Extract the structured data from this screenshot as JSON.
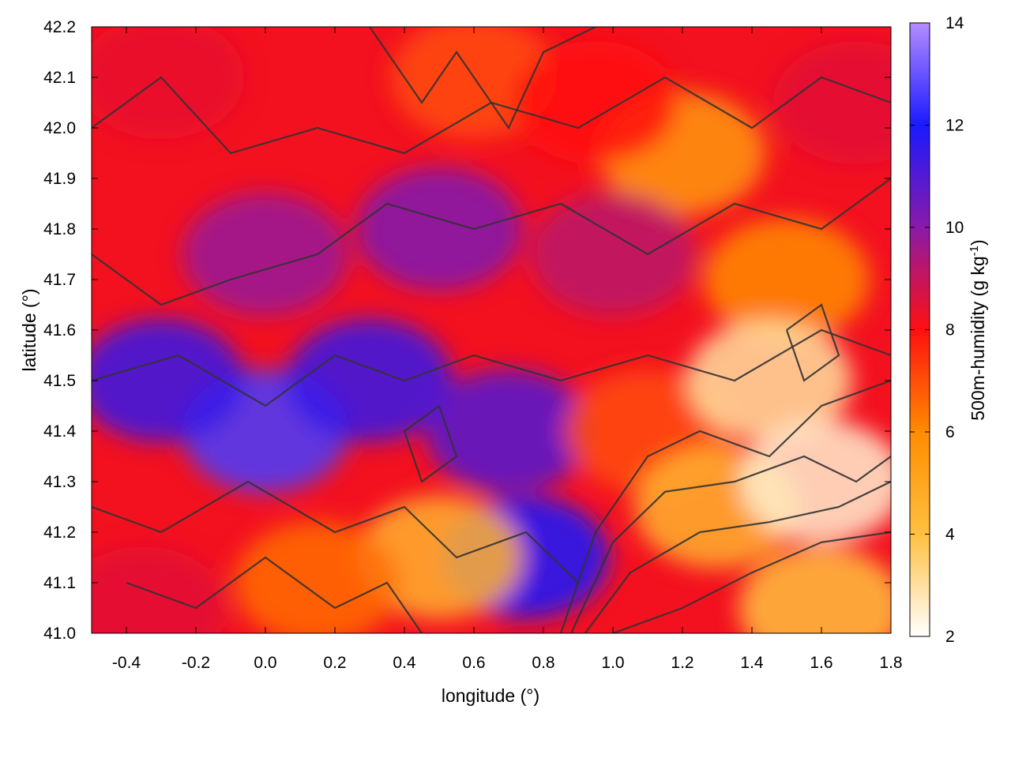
{
  "chart_data": {
    "type": "heatmap",
    "title": "",
    "xlabel": "longitude (°)",
    "ylabel": "latitude (°)",
    "colorbar_label": "500m-humidity (g kg-1)",
    "colorbar_label_parts": {
      "base": "500m-humidity (g kg",
      "sup": "-1",
      "end": ")"
    },
    "xlim": [
      -0.5,
      1.8
    ],
    "ylim": [
      41.0,
      42.2
    ],
    "clim": [
      2,
      14
    ],
    "x_ticks": [
      "-0.4",
      "-0.2",
      "0.0",
      "0.2",
      "0.4",
      "0.6",
      "0.8",
      "1.0",
      "1.2",
      "1.4",
      "1.6",
      "1.8"
    ],
    "x_tick_values": [
      -0.4,
      -0.2,
      0.0,
      0.2,
      0.4,
      0.6,
      0.8,
      1.0,
      1.2,
      1.4,
      1.6,
      1.8
    ],
    "y_ticks": [
      "41.0",
      "41.1",
      "41.2",
      "41.3",
      "41.4",
      "41.5",
      "41.6",
      "41.7",
      "41.8",
      "41.9",
      "42.0",
      "42.1",
      "42.2"
    ],
    "y_tick_values": [
      41.0,
      41.1,
      41.2,
      41.3,
      41.4,
      41.5,
      41.6,
      41.7,
      41.8,
      41.9,
      42.0,
      42.1,
      42.2
    ],
    "colorbar_ticks": [
      "2",
      "4",
      "6",
      "8",
      "10",
      "12",
      "14"
    ],
    "colorbar_tick_values": [
      2,
      4,
      6,
      8,
      10,
      12,
      14
    ],
    "colormap": [
      {
        "value": 2,
        "color": "#ffffff"
      },
      {
        "value": 4,
        "color": "#ffc040"
      },
      {
        "value": 6,
        "color": "#ff8c00"
      },
      {
        "value": 8,
        "color": "#ff1010"
      },
      {
        "value": 10,
        "color": "#8a1aa8"
      },
      {
        "value": 12,
        "color": "#1a1aff"
      },
      {
        "value": 14,
        "color": "#b58cff"
      }
    ],
    "contour_color": "#333333",
    "regions": [
      {
        "x": 0.0,
        "y": 41.4,
        "value": 12.6
      },
      {
        "x": -0.3,
        "y": 41.5,
        "value": 11.5
      },
      {
        "x": 0.3,
        "y": 41.5,
        "value": 11.5
      },
      {
        "x": 0.5,
        "y": 41.8,
        "value": 10.2
      },
      {
        "x": 0.7,
        "y": 41.4,
        "value": 11.0
      },
      {
        "x": 0.75,
        "y": 41.15,
        "value": 12.0
      },
      {
        "x": -0.3,
        "y": 42.1,
        "value": 8.4
      },
      {
        "x": 0.6,
        "y": 42.1,
        "value": 7.0
      },
      {
        "x": 1.2,
        "y": 41.95,
        "value": 5.5
      },
      {
        "x": 1.5,
        "y": 41.7,
        "value": 6.0
      },
      {
        "x": 1.1,
        "y": 41.4,
        "value": 7.0
      },
      {
        "x": 1.3,
        "y": 41.25,
        "value": 4.5
      },
      {
        "x": 1.45,
        "y": 41.5,
        "value": 3.0
      },
      {
        "x": 1.6,
        "y": 41.3,
        "value": 2.5
      },
      {
        "x": 1.6,
        "y": 41.05,
        "value": 4.0
      },
      {
        "x": 0.5,
        "y": 41.15,
        "value": 4.5
      },
      {
        "x": 0.15,
        "y": 41.1,
        "value": 6.5
      },
      {
        "x": -0.35,
        "y": 41.05,
        "value": 8.5
      },
      {
        "x": 0.0,
        "y": 41.75,
        "value": 9.8
      },
      {
        "x": 1.0,
        "y": 41.75,
        "value": 9.2
      },
      {
        "x": 1.7,
        "y": 42.05,
        "value": 8.5
      },
      {
        "x": 0.95,
        "y": 42.05,
        "value": 8.0
      }
    ]
  }
}
